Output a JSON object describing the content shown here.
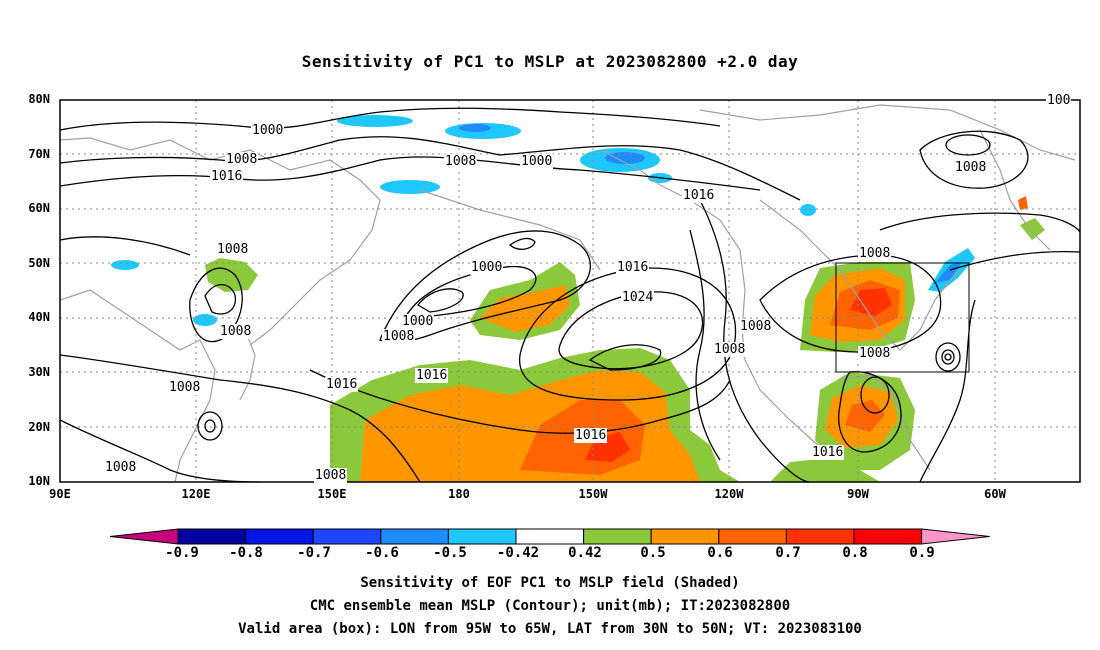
{
  "title": "Sensitivity of PC1 to MSLP at 2023082800 +2.0 day",
  "map": {
    "lat_labels": [
      "80N",
      "70N",
      "60N",
      "50N",
      "40N",
      "30N",
      "20N",
      "10N"
    ],
    "lon_labels": [
      "90E",
      "120E",
      "150E",
      "180",
      "150W",
      "120W",
      "90W",
      "60W"
    ],
    "contour_labels": [
      "1000",
      "1008",
      "1016",
      "1008",
      "1008",
      "1008",
      "1016",
      "1000",
      "1016",
      "1008",
      "1000",
      "1000",
      "1008",
      "1016",
      "1024",
      "1008",
      "1008",
      "1016",
      "1008",
      "1008",
      "1016",
      "1008",
      "1008",
      "1016",
      "1008",
      "100"
    ]
  },
  "colorbar": {
    "ticks": [
      "-0.9",
      "-0.8",
      "-0.7",
      "-0.6",
      "-0.5",
      "-0.42",
      "0.42",
      "0.5",
      "0.6",
      "0.7",
      "0.8",
      "0.9"
    ],
    "colors": [
      "#c8007c",
      "#0000a0",
      "#0014e6",
      "#1e46ff",
      "#1e8cff",
      "#1ec8ff",
      "#ffffff",
      "#8cc83c",
      "#ff9600",
      "#ff6400",
      "#ff3200",
      "#ff0000",
      "#ff96c8"
    ]
  },
  "captions": {
    "line1": "Sensitivity of EOF PC1 to MSLP field (Shaded)",
    "line2": "CMC ensemble mean MSLP (Contour); unit(mb); IT:2023082800",
    "line3": "Valid area (box): LON from 95W to 65W, LAT from 30N to 50N; VT: 2023083100"
  }
}
